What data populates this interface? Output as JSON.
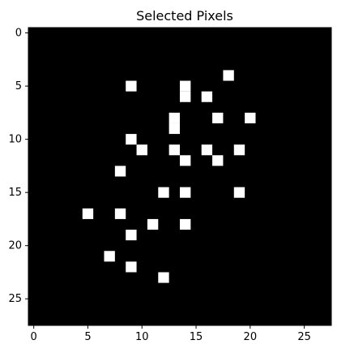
{
  "chart_data": {
    "type": "heatmap",
    "title": "Selected Pixels",
    "xlabel": "",
    "ylabel": "",
    "grid": false,
    "colormap": "gray",
    "background_color": "#000000",
    "pixel_color": "#ffffff",
    "image_shape": [
      28,
      28
    ],
    "xlim": [
      -0.5,
      27.5
    ],
    "ylim": [
      27.5,
      -0.5
    ],
    "x_ticks": [
      0,
      5,
      10,
      15,
      20,
      25
    ],
    "y_ticks": [
      0,
      5,
      10,
      15,
      20,
      25
    ],
    "points": [
      {
        "x": 18,
        "y": 4
      },
      {
        "x": 9,
        "y": 5
      },
      {
        "x": 14,
        "y": 5
      },
      {
        "x": 14,
        "y": 6
      },
      {
        "x": 16,
        "y": 6
      },
      {
        "x": 17,
        "y": 8
      },
      {
        "x": 20,
        "y": 8
      },
      {
        "x": 13,
        "y": 8
      },
      {
        "x": 13,
        "y": 9
      },
      {
        "x": 9,
        "y": 10
      },
      {
        "x": 10,
        "y": 11
      },
      {
        "x": 13,
        "y": 11
      },
      {
        "x": 16,
        "y": 11
      },
      {
        "x": 19,
        "y": 11
      },
      {
        "x": 14,
        "y": 12
      },
      {
        "x": 17,
        "y": 12
      },
      {
        "x": 8,
        "y": 13
      },
      {
        "x": 12,
        "y": 15
      },
      {
        "x": 14,
        "y": 15
      },
      {
        "x": 19,
        "y": 15
      },
      {
        "x": 5,
        "y": 17
      },
      {
        "x": 8,
        "y": 17
      },
      {
        "x": 11,
        "y": 18
      },
      {
        "x": 14,
        "y": 18
      },
      {
        "x": 9,
        "y": 19
      },
      {
        "x": 7,
        "y": 21
      },
      {
        "x": 9,
        "y": 22
      },
      {
        "x": 12,
        "y": 23
      }
    ]
  }
}
